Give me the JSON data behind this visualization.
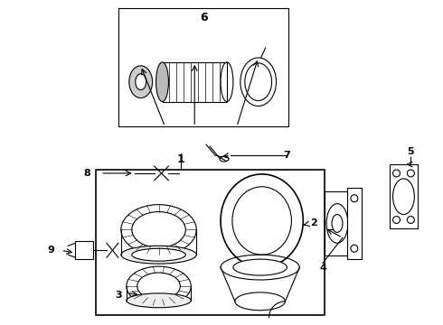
{
  "bg_color": "#ffffff",
  "line_color": "#000000",
  "lw": 0.8
}
